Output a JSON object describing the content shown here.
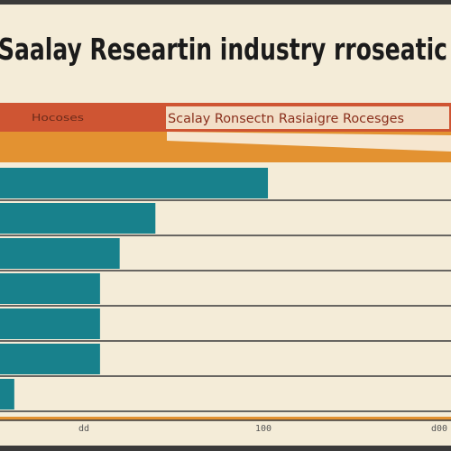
{
  "chart_data": {
    "type": "bar",
    "orientation": "horizontal",
    "title": "Saalay Researtin industry rroseatic",
    "subtitle": "Scalay Ronsectn Rasiaigre Rocesges",
    "header_left": "Hocoses",
    "categories": [
      "",
      "",
      "",
      "",
      "",
      "",
      ""
    ],
    "series": [
      {
        "values": [
          300,
          174,
          134,
          112,
          112,
          112,
          16
        ]
      }
    ],
    "x_ticks": [
      "dd",
      "100",
      "d00"
    ],
    "xlim": [
      0,
      505
    ],
    "grid": true,
    "legend": "none",
    "colors": {
      "background": "#f4ecd8",
      "banner": "#cf5533",
      "accent": "#e39231",
      "bar": "#18818c",
      "grid": "#3a3a3a",
      "title_text": "#1b1b1b",
      "subtitle_text": "#8a2f1c"
    }
  }
}
